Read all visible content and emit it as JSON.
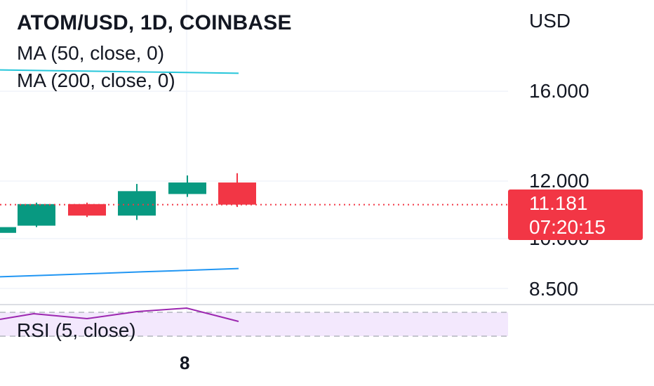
{
  "chart_data": {
    "type": "candlestick",
    "title": "ATOM/USD, 1D, COINBASE",
    "currency": "USD",
    "indicators": [
      {
        "label": "MA (50, close, 0)",
        "color": "#26c6da"
      },
      {
        "label": "MA (200, close, 0)",
        "color": "#2196f3"
      }
    ],
    "y_ticks": [
      "16.000",
      "12.000",
      "10.000",
      "8.500"
    ],
    "y_tick_values": [
      16.0,
      12.0,
      10.0,
      8.5
    ],
    "x_tick": "8",
    "candles": [
      {
        "open": 10.2,
        "close": 10.4,
        "high": 10.45,
        "low": 10.15,
        "dir": "up"
      },
      {
        "open": 10.45,
        "close": 11.2,
        "high": 11.25,
        "low": 10.4,
        "dir": "up"
      },
      {
        "open": 11.2,
        "close": 10.8,
        "high": 11.25,
        "low": 10.75,
        "dir": "down"
      },
      {
        "open": 10.8,
        "close": 11.65,
        "high": 11.9,
        "low": 10.65,
        "dir": "up"
      },
      {
        "open": 11.55,
        "close": 11.95,
        "high": 12.25,
        "low": 11.45,
        "dir": "up"
      },
      {
        "open": 11.95,
        "close": 11.181,
        "high": 12.35,
        "low": 11.1,
        "dir": "down"
      }
    ],
    "ma50": [
      16.95,
      16.92,
      16.89,
      16.86,
      16.83,
      16.8
    ],
    "ma200": [
      8.85,
      8.9,
      8.95,
      9.0,
      9.05,
      9.1
    ],
    "last_price": "11.181",
    "countdown": "07:20:15",
    "rsi": {
      "label": "RSI (5, close)",
      "color": "#9c27b0",
      "band_color": "#f3e8fd"
    },
    "colors": {
      "up": "#089981",
      "down": "#f23645",
      "grid": "#f0f3fa"
    }
  }
}
